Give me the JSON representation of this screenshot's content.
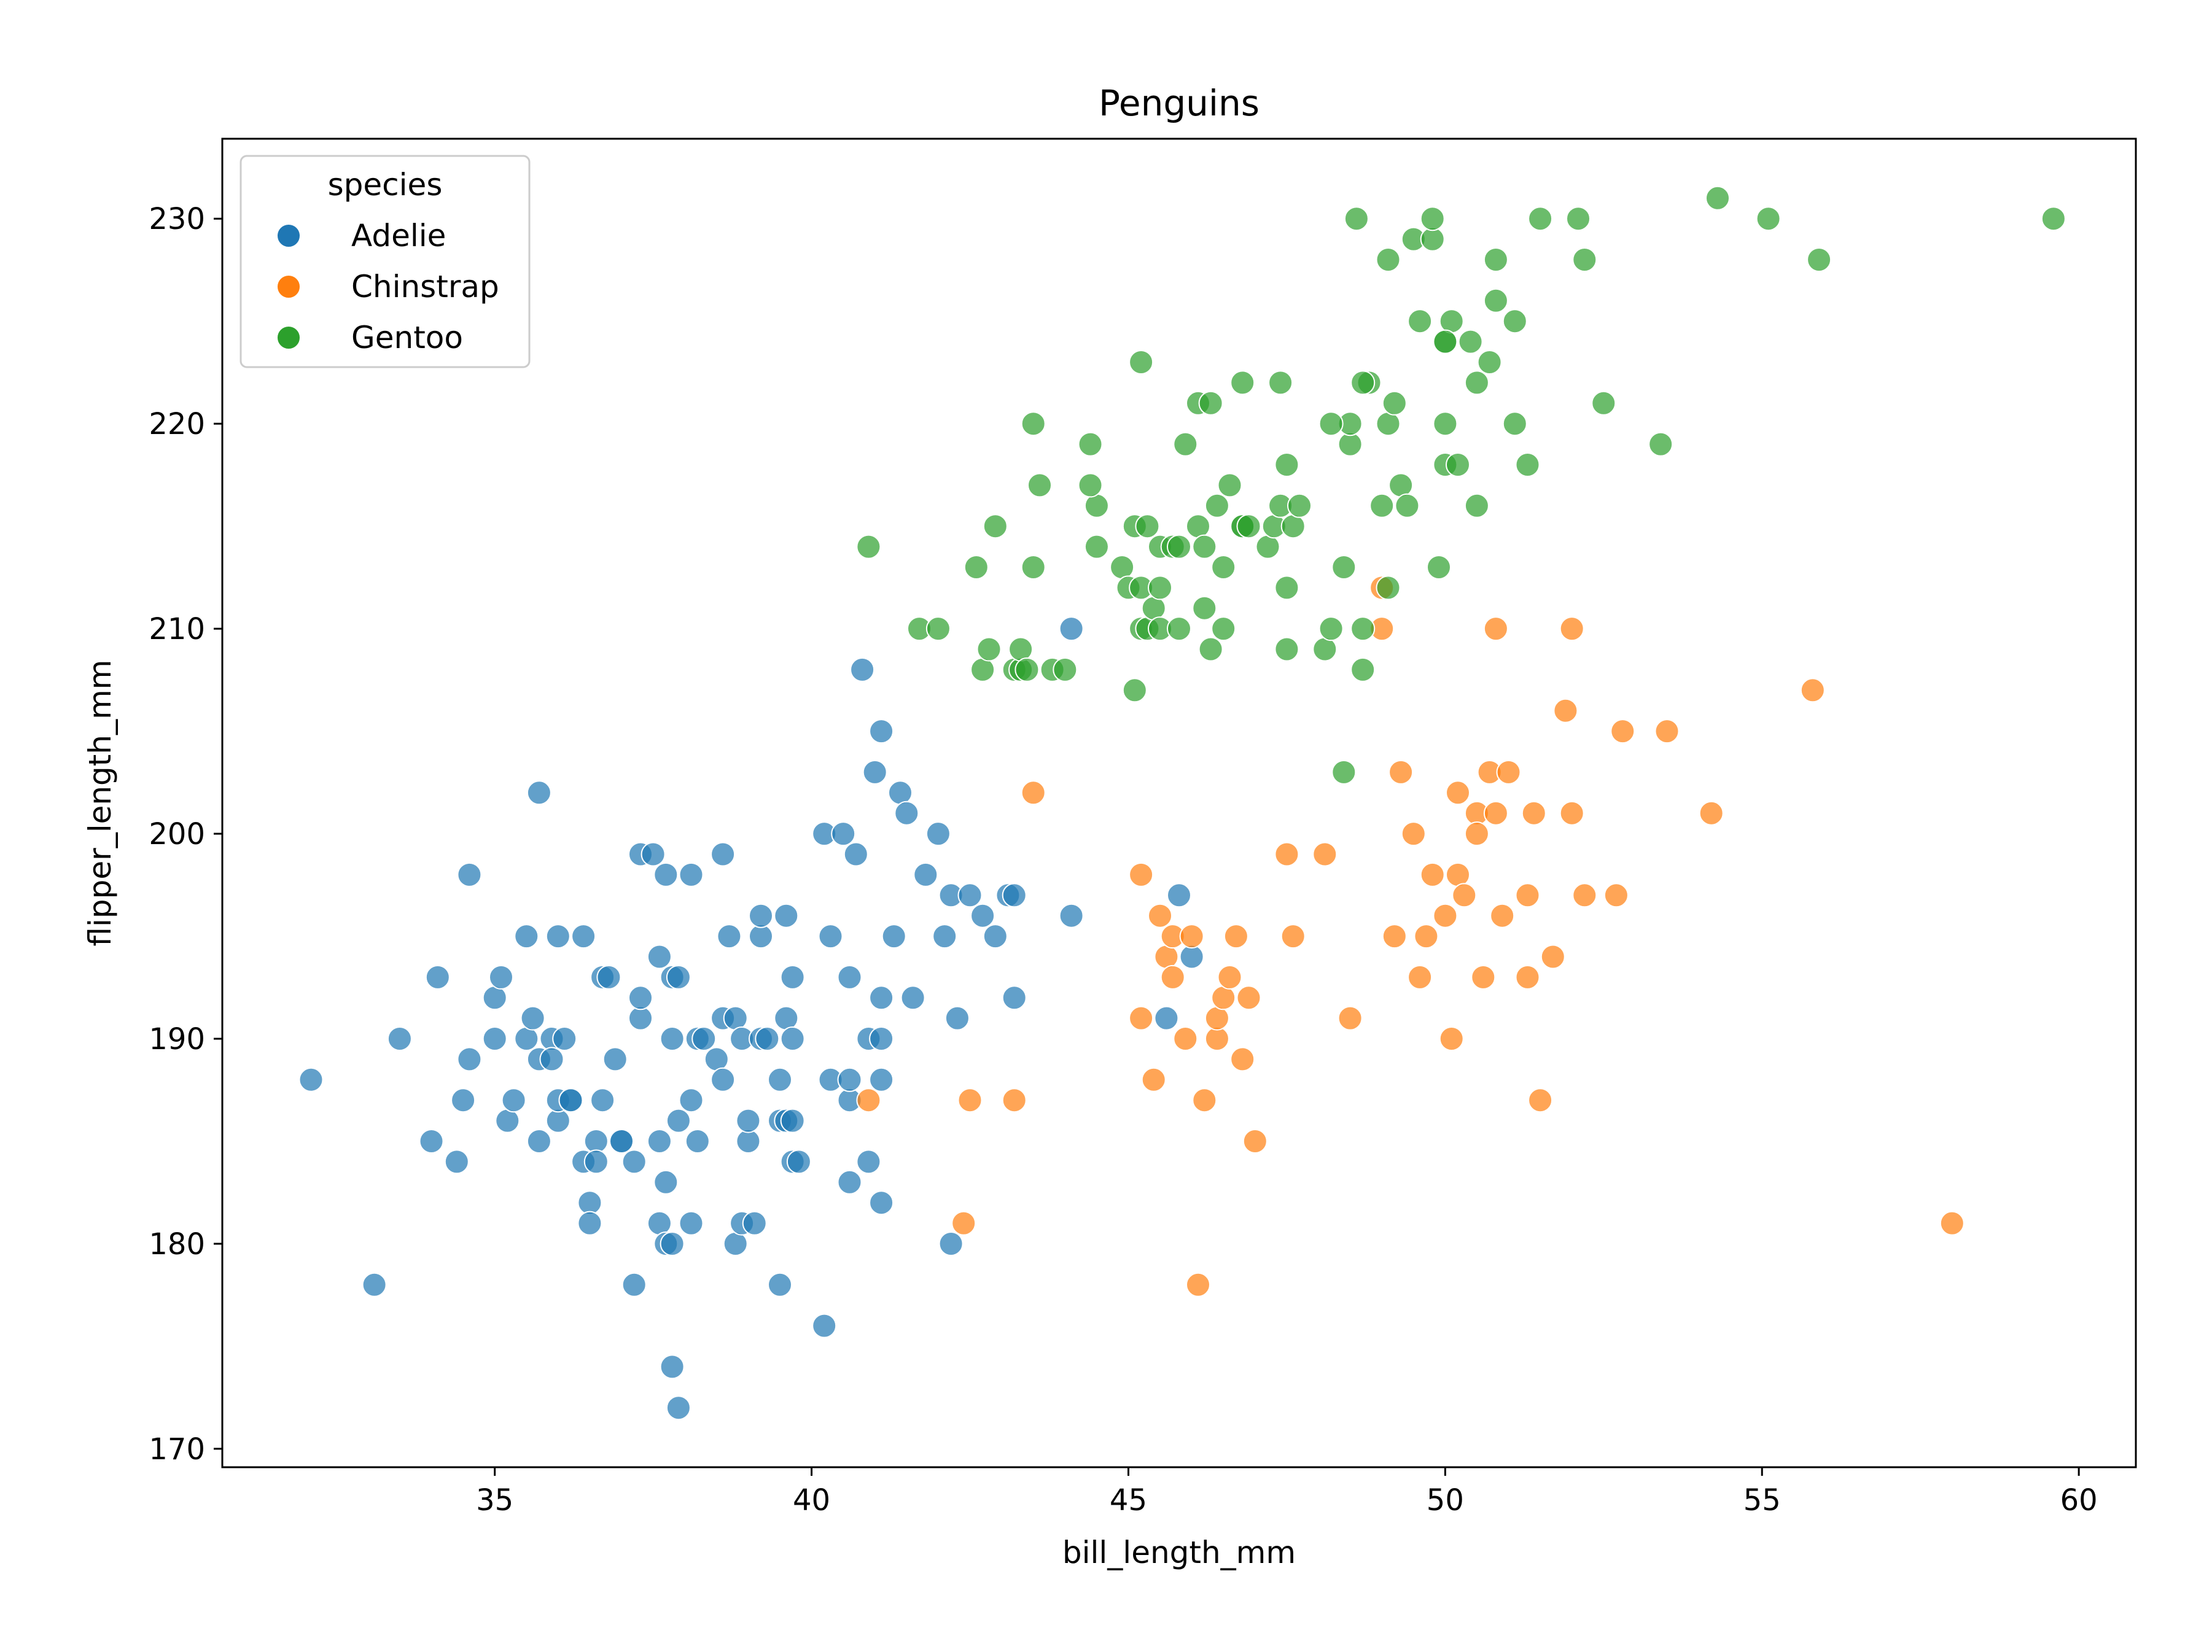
{
  "chart_data": {
    "type": "scatter",
    "title": "Penguins",
    "xlabel": "bill_length_mm",
    "ylabel": "flipper_length_mm",
    "xlim": [
      30.7,
      60.9
    ],
    "ylim": [
      169.1,
      233.9
    ],
    "xticks": [
      35,
      40,
      45,
      50,
      55,
      60
    ],
    "yticks": [
      170,
      180,
      190,
      200,
      210,
      220,
      230
    ],
    "grid": false,
    "legend": {
      "title": "species",
      "position": "top-left"
    },
    "series": [
      {
        "name": "Adelie",
        "color": "#1f77b4",
        "points": [
          [
            32.1,
            188
          ],
          [
            33.1,
            178
          ],
          [
            33.5,
            190
          ],
          [
            34.0,
            185
          ],
          [
            34.1,
            193
          ],
          [
            34.4,
            184
          ],
          [
            34.5,
            187
          ],
          [
            34.6,
            189
          ],
          [
            34.6,
            198
          ],
          [
            35.0,
            190
          ],
          [
            35.0,
            192
          ],
          [
            35.1,
            193
          ],
          [
            35.2,
            186
          ],
          [
            35.3,
            187
          ],
          [
            35.5,
            190
          ],
          [
            35.5,
            195
          ],
          [
            35.6,
            191
          ],
          [
            35.7,
            185
          ],
          [
            35.7,
            189
          ],
          [
            35.7,
            202
          ],
          [
            35.9,
            190
          ],
          [
            35.9,
            189
          ],
          [
            36.0,
            186
          ],
          [
            36.0,
            195
          ],
          [
            36.0,
            187
          ],
          [
            36.1,
            190
          ],
          [
            36.2,
            187
          ],
          [
            36.2,
            187
          ],
          [
            36.4,
            184
          ],
          [
            36.4,
            195
          ],
          [
            36.5,
            182
          ],
          [
            36.5,
            181
          ],
          [
            36.6,
            185
          ],
          [
            36.6,
            184
          ],
          [
            36.7,
            193
          ],
          [
            36.7,
            187
          ],
          [
            36.8,
            193
          ],
          [
            36.9,
            189
          ],
          [
            37.0,
            185
          ],
          [
            37.0,
            185
          ],
          [
            37.2,
            178
          ],
          [
            37.2,
            184
          ],
          [
            37.3,
            199
          ],
          [
            37.3,
            191
          ],
          [
            37.3,
            192
          ],
          [
            37.5,
            199
          ],
          [
            37.6,
            194
          ],
          [
            37.6,
            185
          ],
          [
            37.6,
            181
          ],
          [
            37.7,
            198
          ],
          [
            37.7,
            183
          ],
          [
            37.7,
            180
          ],
          [
            37.8,
            180
          ],
          [
            37.8,
            174
          ],
          [
            37.8,
            193
          ],
          [
            37.8,
            190
          ],
          [
            37.9,
            172
          ],
          [
            37.9,
            186
          ],
          [
            37.9,
            193
          ],
          [
            38.1,
            198
          ],
          [
            38.1,
            181
          ],
          [
            38.1,
            187
          ],
          [
            38.2,
            185
          ],
          [
            38.2,
            190
          ],
          [
            38.3,
            190
          ],
          [
            38.5,
            189
          ],
          [
            38.6,
            199
          ],
          [
            38.6,
            191
          ],
          [
            38.6,
            188
          ],
          [
            38.7,
            195
          ],
          [
            38.8,
            180
          ],
          [
            38.8,
            191
          ],
          [
            38.9,
            181
          ],
          [
            38.9,
            190
          ],
          [
            39.0,
            185
          ],
          [
            39.0,
            186
          ],
          [
            39.1,
            181
          ],
          [
            39.2,
            195
          ],
          [
            39.2,
            196
          ],
          [
            39.2,
            190
          ],
          [
            39.3,
            190
          ],
          [
            39.5,
            178
          ],
          [
            39.5,
            186
          ],
          [
            39.5,
            188
          ],
          [
            39.6,
            186
          ],
          [
            39.6,
            191
          ],
          [
            39.6,
            196
          ],
          [
            39.7,
            186
          ],
          [
            39.7,
            184
          ],
          [
            39.7,
            190
          ],
          [
            39.7,
            193
          ],
          [
            39.8,
            184
          ],
          [
            40.2,
            176
          ],
          [
            40.2,
            200
          ],
          [
            40.3,
            188
          ],
          [
            40.3,
            195
          ],
          [
            40.5,
            200
          ],
          [
            40.6,
            183
          ],
          [
            40.6,
            187
          ],
          [
            40.6,
            193
          ],
          [
            40.6,
            188
          ],
          [
            40.7,
            199
          ],
          [
            40.8,
            208
          ],
          [
            40.9,
            184
          ],
          [
            40.9,
            190
          ],
          [
            41.0,
            203
          ],
          [
            41.1,
            182
          ],
          [
            41.1,
            192
          ],
          [
            41.1,
            188
          ],
          [
            41.1,
            205
          ],
          [
            41.1,
            190
          ],
          [
            41.3,
            195
          ],
          [
            41.4,
            202
          ],
          [
            41.5,
            201
          ],
          [
            41.6,
            192
          ],
          [
            41.8,
            198
          ],
          [
            42.0,
            200
          ],
          [
            42.1,
            195
          ],
          [
            42.2,
            180
          ],
          [
            42.2,
            197
          ],
          [
            42.3,
            191
          ],
          [
            42.5,
            197
          ],
          [
            42.7,
            196
          ],
          [
            42.9,
            195
          ],
          [
            43.1,
            197
          ],
          [
            43.2,
            192
          ],
          [
            43.2,
            197
          ],
          [
            44.1,
            196
          ],
          [
            44.1,
            210
          ],
          [
            45.6,
            191
          ],
          [
            45.8,
            197
          ],
          [
            46.0,
            194
          ]
        ]
      },
      {
        "name": "Chinstrap",
        "color": "#ff7f0e",
        "points": [
          [
            40.9,
            187
          ],
          [
            42.4,
            181
          ],
          [
            42.5,
            187
          ],
          [
            43.2,
            187
          ],
          [
            43.5,
            202
          ],
          [
            45.2,
            198
          ],
          [
            45.2,
            191
          ],
          [
            45.4,
            188
          ],
          [
            45.5,
            196
          ],
          [
            45.6,
            194
          ],
          [
            45.7,
            195
          ],
          [
            45.7,
            193
          ],
          [
            45.9,
            190
          ],
          [
            46.0,
            195
          ],
          [
            46.1,
            178
          ],
          [
            46.2,
            187
          ],
          [
            46.4,
            190
          ],
          [
            46.4,
            191
          ],
          [
            46.5,
            192
          ],
          [
            46.6,
            193
          ],
          [
            46.7,
            195
          ],
          [
            46.8,
            189
          ],
          [
            46.9,
            192
          ],
          [
            47.0,
            185
          ],
          [
            47.5,
            199
          ],
          [
            47.6,
            195
          ],
          [
            48.1,
            199
          ],
          [
            48.5,
            191
          ],
          [
            49.0,
            212
          ],
          [
            49.0,
            210
          ],
          [
            49.2,
            195
          ],
          [
            49.3,
            203
          ],
          [
            49.5,
            200
          ],
          [
            49.6,
            193
          ],
          [
            49.7,
            195
          ],
          [
            49.8,
            198
          ],
          [
            50.0,
            196
          ],
          [
            50.1,
            190
          ],
          [
            50.2,
            198
          ],
          [
            50.2,
            202
          ],
          [
            50.3,
            197
          ],
          [
            50.5,
            201
          ],
          [
            50.5,
            200
          ],
          [
            50.6,
            193
          ],
          [
            50.7,
            203
          ],
          [
            50.8,
            201
          ],
          [
            50.8,
            210
          ],
          [
            50.9,
            196
          ],
          [
            51.0,
            203
          ],
          [
            51.3,
            197
          ],
          [
            51.3,
            193
          ],
          [
            51.4,
            201
          ],
          [
            51.5,
            187
          ],
          [
            51.7,
            194
          ],
          [
            51.9,
            206
          ],
          [
            52.0,
            210
          ],
          [
            52.0,
            201
          ],
          [
            52.2,
            197
          ],
          [
            52.7,
            197
          ],
          [
            52.8,
            205
          ],
          [
            53.5,
            205
          ],
          [
            54.2,
            201
          ],
          [
            55.8,
            207
          ],
          [
            58.0,
            181
          ]
        ]
      },
      {
        "name": "Gentoo",
        "color": "#2ca02c",
        "points": [
          [
            40.9,
            214
          ],
          [
            41.7,
            210
          ],
          [
            42.0,
            210
          ],
          [
            42.6,
            213
          ],
          [
            42.7,
            208
          ],
          [
            42.8,
            209
          ],
          [
            42.9,
            215
          ],
          [
            43.2,
            208
          ],
          [
            43.3,
            208
          ],
          [
            43.3,
            209
          ],
          [
            43.4,
            208
          ],
          [
            43.5,
            213
          ],
          [
            43.5,
            220
          ],
          [
            43.6,
            217
          ],
          [
            43.8,
            208
          ],
          [
            44.0,
            208
          ],
          [
            44.4,
            219
          ],
          [
            44.5,
            214
          ],
          [
            44.5,
            216
          ],
          [
            44.9,
            213
          ],
          [
            45.0,
            212
          ],
          [
            45.1,
            207
          ],
          [
            45.1,
            215
          ],
          [
            45.2,
            210
          ],
          [
            45.2,
            212
          ],
          [
            45.3,
            215
          ],
          [
            45.3,
            210
          ],
          [
            45.4,
            211
          ],
          [
            45.5,
            212
          ],
          [
            45.5,
            210
          ],
          [
            45.5,
            214
          ],
          [
            45.7,
            214
          ],
          [
            45.8,
            210
          ],
          [
            45.9,
            219
          ],
          [
            46.1,
            215
          ],
          [
            46.2,
            211
          ],
          [
            46.2,
            214
          ],
          [
            46.3,
            209
          ],
          [
            46.4,
            216
          ],
          [
            46.5,
            213
          ],
          [
            46.5,
            210
          ],
          [
            46.8,
            215
          ],
          [
            46.8,
            215
          ],
          [
            46.9,
            215
          ],
          [
            47.2,
            214
          ],
          [
            47.3,
            215
          ],
          [
            47.4,
            216
          ],
          [
            47.5,
            212
          ],
          [
            47.5,
            209
          ],
          [
            47.6,
            215
          ],
          [
            47.7,
            216
          ],
          [
            48.1,
            209
          ],
          [
            48.2,
            210
          ],
          [
            48.4,
            213
          ],
          [
            48.4,
            203
          ],
          [
            48.5,
            219
          ],
          [
            48.5,
            220
          ],
          [
            48.6,
            230
          ],
          [
            48.7,
            208
          ],
          [
            48.7,
            210
          ],
          [
            48.8,
            222
          ],
          [
            49.0,
            216
          ],
          [
            49.1,
            212
          ],
          [
            49.1,
            220
          ],
          [
            49.1,
            228
          ],
          [
            49.2,
            221
          ],
          [
            49.3,
            217
          ],
          [
            49.4,
            216
          ],
          [
            49.5,
            229
          ],
          [
            49.6,
            225
          ],
          [
            49.8,
            229
          ],
          [
            49.9,
            213
          ],
          [
            50.0,
            218
          ],
          [
            50.0,
            220
          ],
          [
            50.0,
            224
          ],
          [
            50.1,
            225
          ],
          [
            50.2,
            218
          ],
          [
            50.4,
            224
          ],
          [
            50.5,
            216
          ],
          [
            50.5,
            222
          ],
          [
            50.7,
            223
          ],
          [
            50.8,
            226
          ],
          [
            51.1,
            220
          ],
          [
            51.1,
            225
          ],
          [
            51.3,
            218
          ],
          [
            51.5,
            230
          ],
          [
            52.1,
            230
          ],
          [
            52.2,
            228
          ],
          [
            52.5,
            221
          ],
          [
            53.4,
            219
          ],
          [
            54.3,
            231
          ],
          [
            55.1,
            230
          ],
          [
            55.9,
            228
          ],
          [
            59.6,
            230
          ],
          [
            45.2,
            223
          ],
          [
            46.1,
            221
          ],
          [
            46.6,
            217
          ],
          [
            47.5,
            218
          ],
          [
            48.2,
            220
          ],
          [
            49.8,
            230
          ],
          [
            50.0,
            224
          ],
          [
            50.8,
            228
          ],
          [
            44.4,
            217
          ],
          [
            45.8,
            214
          ],
          [
            46.8,
            222
          ],
          [
            47.4,
            222
          ],
          [
            48.7,
            222
          ],
          [
            46.3,
            221
          ]
        ]
      }
    ]
  }
}
